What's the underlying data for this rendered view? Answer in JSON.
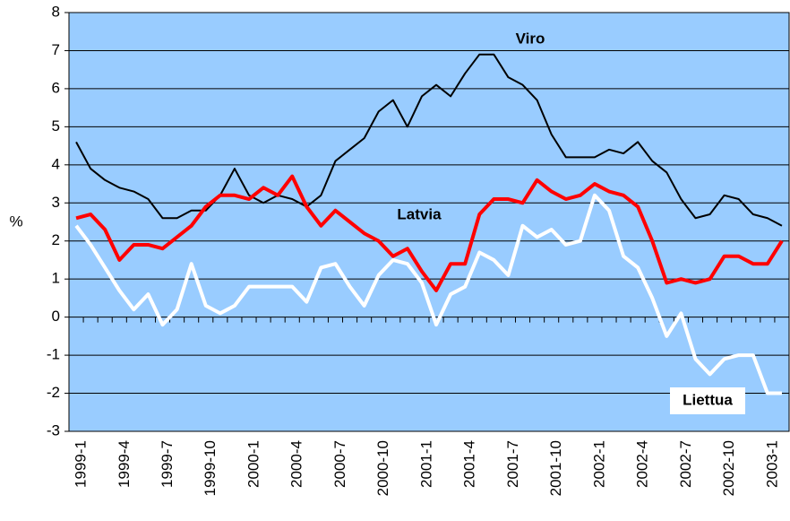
{
  "chart_data": {
    "type": "line",
    "y_label": "%",
    "categories": [
      "1999-1",
      null,
      null,
      "1999-4",
      null,
      null,
      "1999-7",
      null,
      null,
      "1999-10",
      null,
      null,
      "2000-1",
      null,
      null,
      "2000-4",
      null,
      null,
      "2000-7",
      null,
      null,
      "2000-10",
      null,
      null,
      "2001-1",
      null,
      null,
      "2001-4",
      null,
      null,
      "2001-7",
      null,
      null,
      "2001-10",
      null,
      null,
      "2002-1",
      null,
      null,
      "2002-4",
      null,
      null,
      "2002-7",
      null,
      null,
      "2002-10",
      null,
      null,
      "2003-1",
      null
    ],
    "series": [
      {
        "name": "Viro",
        "color": "#000000",
        "values": [
          4.6,
          3.9,
          3.6,
          3.4,
          3.3,
          3.1,
          2.6,
          2.6,
          2.8,
          2.8,
          3.2,
          3.9,
          3.2,
          3.0,
          3.2,
          3.1,
          2.9,
          3.2,
          4.1,
          4.4,
          4.7,
          5.4,
          5.7,
          5.0,
          5.8,
          6.1,
          5.8,
          6.4,
          6.9,
          6.9,
          6.3,
          6.1,
          5.7,
          4.8,
          4.2,
          4.2,
          4.2,
          4.4,
          4.3,
          4.6,
          4.1,
          3.8,
          3.1,
          2.6,
          2.7,
          3.2,
          3.1,
          2.7,
          2.6,
          2.4
        ]
      },
      {
        "name": "Latvia",
        "color": "#ff0000",
        "values": [
          2.6,
          2.7,
          2.3,
          1.5,
          1.9,
          1.9,
          1.8,
          2.1,
          2.4,
          2.9,
          3.2,
          3.2,
          3.1,
          3.4,
          3.2,
          3.7,
          2.9,
          2.4,
          2.8,
          2.5,
          2.2,
          2.0,
          1.6,
          1.8,
          1.2,
          0.7,
          1.4,
          1.4,
          2.7,
          3.1,
          3.1,
          3.0,
          3.6,
          3.3,
          3.1,
          3.2,
          3.5,
          3.3,
          3.2,
          2.9,
          2.0,
          0.9,
          1.0,
          0.9,
          1.0,
          1.6,
          1.6,
          1.4,
          1.4,
          2.0
        ]
      },
      {
        "name": "Liettua",
        "color": "#ffffff",
        "values": [
          2.4,
          1.9,
          1.3,
          0.7,
          0.2,
          0.6,
          -0.2,
          0.2,
          1.4,
          0.3,
          0.1,
          0.3,
          0.8,
          0.8,
          0.8,
          0.8,
          0.4,
          1.3,
          1.4,
          0.8,
          0.3,
          1.1,
          1.5,
          1.4,
          0.9,
          -0.2,
          0.6,
          0.8,
          1.7,
          1.5,
          1.1,
          2.4,
          2.1,
          2.3,
          1.9,
          2.0,
          3.2,
          2.8,
          1.6,
          1.3,
          0.5,
          -0.5,
          0.1,
          -1.1,
          -1.5,
          -1.1,
          -1.0,
          -1.0,
          -2.0,
          -2.0
        ]
      }
    ],
    "ylim": [
      -3,
      8
    ],
    "yticks": [
      -3,
      -2,
      -1,
      0,
      1,
      2,
      3,
      4,
      5,
      6,
      7,
      8
    ],
    "grid": true,
    "plot_color": "#99ccff"
  }
}
